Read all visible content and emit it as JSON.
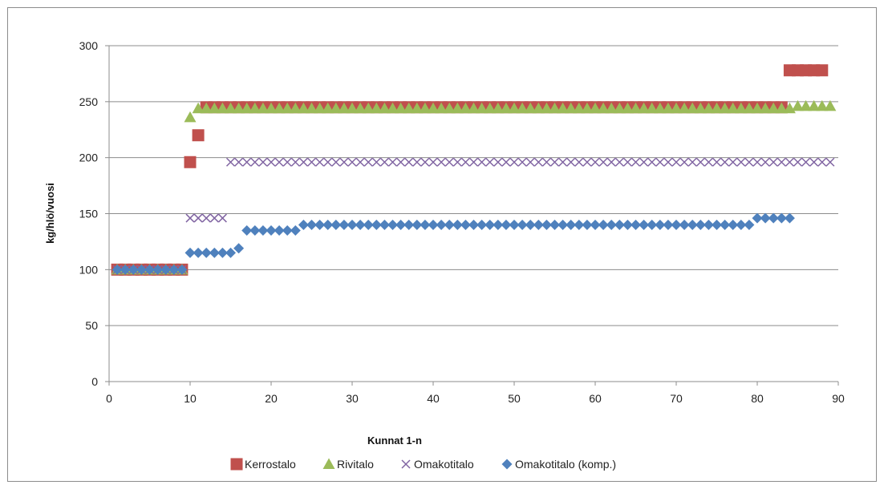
{
  "chart_data": {
    "type": "scatter",
    "title": "",
    "xlabel": "Kunnat 1-n",
    "ylabel": "kg/hlö/vuosi",
    "xlim": [
      0,
      90
    ],
    "ylim": [
      0,
      300
    ],
    "x_ticks": [
      0,
      10,
      20,
      30,
      40,
      50,
      60,
      70,
      80,
      90
    ],
    "y_ticks": [
      0,
      50,
      100,
      150,
      200,
      250,
      300
    ],
    "grid": "horizontal",
    "legend_position": "bottom",
    "series": [
      {
        "name": "Kerrostalo",
        "marker": "square",
        "color": "#c0504d",
        "segments": [
          {
            "from": 1,
            "to": 9,
            "value": 100
          },
          {
            "from": 10,
            "to": 10,
            "value": 196
          },
          {
            "from": 11,
            "to": 11,
            "value": 220
          },
          {
            "from": 12,
            "to": 83,
            "value": 245
          },
          {
            "from": 84,
            "to": 88,
            "value": 278
          }
        ]
      },
      {
        "name": "Rivitalo",
        "marker": "triangle",
        "color": "#9bbb59",
        "segments": [
          {
            "from": 1,
            "to": 9,
            "value": 100
          },
          {
            "from": 10,
            "to": 10,
            "value": 236
          },
          {
            "from": 11,
            "to": 84,
            "value": 244
          },
          {
            "from": 85,
            "to": 89,
            "value": 246
          }
        ]
      },
      {
        "name": "Omakotitalo",
        "marker": "x",
        "color": "#8064a2",
        "segments": [
          {
            "from": 1,
            "to": 9,
            "value": 100
          },
          {
            "from": 10,
            "to": 14,
            "value": 146
          },
          {
            "from": 15,
            "to": 89,
            "value": 196
          }
        ]
      },
      {
        "name": "Omakotitalo (komp.)",
        "marker": "diamond",
        "color": "#4f81bd",
        "segments": [
          {
            "from": 1,
            "to": 9,
            "value": 100
          },
          {
            "from": 10,
            "to": 15,
            "value": 115
          },
          {
            "from": 16,
            "to": 16,
            "value": 119
          },
          {
            "from": 17,
            "to": 23,
            "value": 135
          },
          {
            "from": 24,
            "to": 79,
            "value": 140
          },
          {
            "from": 80,
            "to": 84,
            "value": 146
          }
        ]
      }
    ]
  }
}
